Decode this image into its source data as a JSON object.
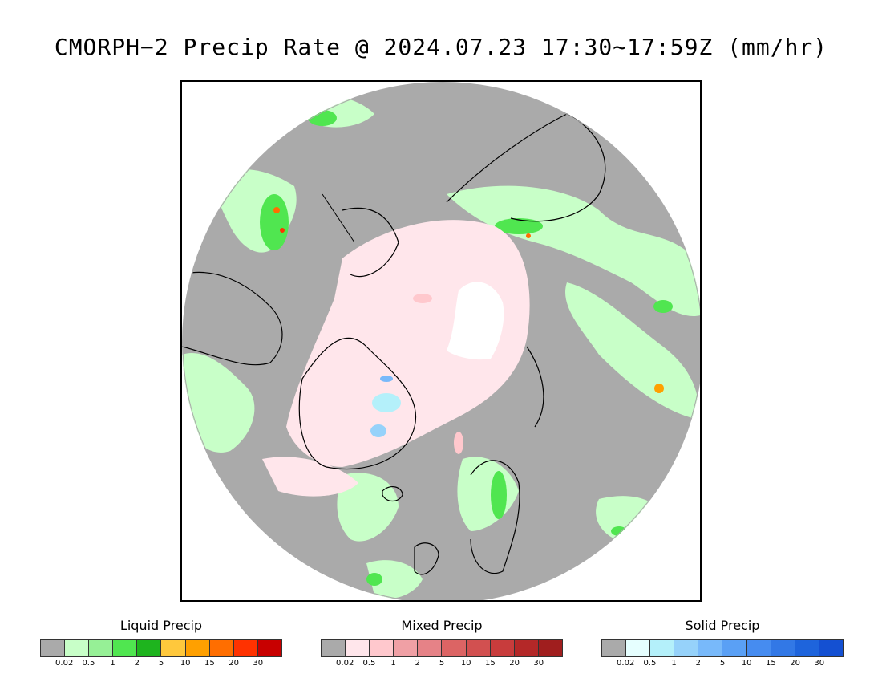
{
  "title": "CMORPH−2 Precip Rate @ 2024.07.23 17:30~17:59Z (mm/hr)",
  "map": {
    "projection": "polar-stereographic-north",
    "background_color": "#aaaaaa",
    "no_data_color": "#ffffff"
  },
  "legends": [
    {
      "name": "liquid",
      "title": "Liquid Precip",
      "colors": [
        "#aaaaaa",
        "#c8ffc8",
        "#96f096",
        "#50e650",
        "#1eb41e",
        "#ffc83c",
        "#ffa000",
        "#ff6e00",
        "#ff3200",
        "#c80000"
      ],
      "ticks": [
        "0.02",
        "0.5",
        "1",
        "2",
        "5",
        "10",
        "15",
        "20",
        "30"
      ]
    },
    {
      "name": "mixed",
      "title": "Mixed Precip",
      "colors": [
        "#aaaaaa",
        "#ffe6eb",
        "#ffc8cd",
        "#f0a0a5",
        "#e68287",
        "#dc6464",
        "#d25050",
        "#c83c3c",
        "#b42828",
        "#a01e1e"
      ],
      "ticks": [
        "0.02",
        "0.5",
        "1",
        "2",
        "5",
        "10",
        "15",
        "20",
        "30"
      ]
    },
    {
      "name": "solid",
      "title": "Solid Precip",
      "colors": [
        "#aaaaaa",
        "#e6ffff",
        "#b4f0fa",
        "#96d2fa",
        "#78b9fa",
        "#5aa0f5",
        "#468cf0",
        "#3278e6",
        "#1e64dc",
        "#1450d2"
      ],
      "ticks": [
        "0.02",
        "0.5",
        "1",
        "2",
        "5",
        "10",
        "15",
        "20",
        "30"
      ]
    }
  ]
}
